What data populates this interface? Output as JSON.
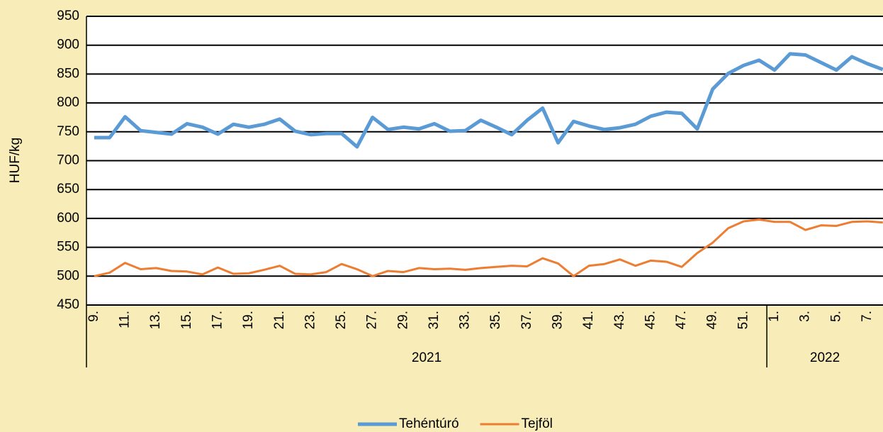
{
  "chart_data": {
    "type": "line",
    "y_label": "HUF/kg",
    "groups": [
      {
        "label": "2021",
        "categories": [
          "9.",
          null,
          "11.",
          null,
          "13.",
          null,
          "15.",
          null,
          "17.",
          null,
          "19.",
          null,
          "21.",
          null,
          "23.",
          null,
          "25.",
          null,
          "27.",
          null,
          "29.",
          null,
          "31.",
          null,
          "33.",
          null,
          "35.",
          null,
          "37.",
          null,
          "39.",
          null,
          "41.",
          null,
          "43.",
          null,
          "45.",
          null,
          "47.",
          null,
          "49.",
          null,
          "51.",
          null
        ]
      },
      {
        "label": "2022",
        "categories": [
          "1.",
          null,
          "3.",
          null,
          "5.",
          null,
          "7.",
          null
        ]
      }
    ],
    "series": [
      {
        "name": "Tehéntúró",
        "color": "#5b9bd5",
        "values": [
          740,
          740,
          776,
          752,
          749,
          746,
          764,
          758,
          746,
          763,
          758,
          763,
          772,
          751,
          745,
          747,
          747,
          724,
          775,
          754,
          758,
          755,
          764,
          751,
          752,
          770,
          758,
          745,
          770,
          791,
          731,
          768,
          760,
          754,
          757,
          763,
          777,
          784,
          782,
          755,
          824,
          851,
          865,
          874,
          857,
          885,
          883,
          870,
          857,
          880,
          868,
          858
        ]
      },
      {
        "name": "Tejföl",
        "color": "#ed7d31",
        "values": [
          500,
          506,
          523,
          512,
          514,
          509,
          508,
          503,
          515,
          504,
          505,
          511,
          518,
          504,
          503,
          507,
          521,
          512,
          500,
          509,
          507,
          514,
          512,
          513,
          511,
          514,
          516,
          518,
          517,
          531,
          522,
          500,
          518,
          521,
          529,
          518,
          527,
          525,
          516,
          540,
          558,
          583,
          595,
          598,
          594,
          594,
          580,
          588,
          587,
          594,
          595,
          593
        ]
      }
    ],
    "ylim": [
      450,
      950
    ],
    "yticks": [
      450,
      500,
      550,
      600,
      650,
      700,
      750,
      800,
      850,
      900,
      950
    ],
    "grid": true,
    "legend": "bottom"
  }
}
